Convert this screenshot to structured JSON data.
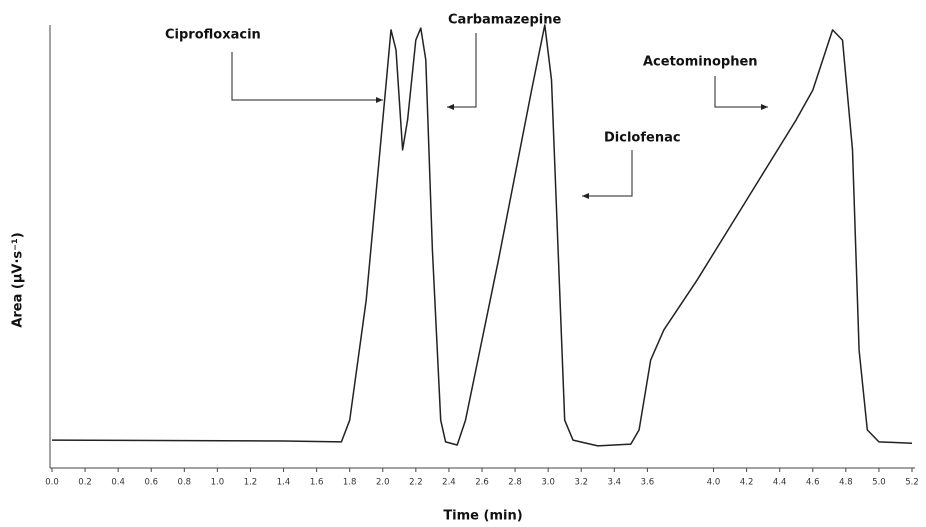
{
  "chart_data": {
    "type": "line",
    "xlabel": "Time (min)",
    "ylabel": "Area (μV·s⁻¹)",
    "annotations": [
      "Ciprofloxacin",
      "Carbamazepine",
      "Diclofenac",
      "Acetominophen"
    ],
    "xlim": [
      0,
      5.2
    ],
    "ylim": [
      0,
      100
    ],
    "xticks": [
      {
        "value": 0,
        "label": "0.0"
      },
      0.2,
      0.4,
      0.6,
      0.8,
      {
        "value": 1,
        "label": "1.0"
      },
      1.2,
      1.4,
      1.6,
      1.8,
      {
        "value": 2,
        "label": "2.0"
      },
      2.2,
      2.4,
      2.6,
      2.8,
      {
        "value": 3,
        "label": "3.0"
      },
      3.2,
      3.4,
      3.6,
      {
        "value": 4,
        "label": "4.0"
      },
      4.2,
      4.4,
      4.6,
      4.8,
      {
        "value": 5,
        "label": "5.0"
      },
      5.2
    ],
    "series": [
      {
        "color": "#222222",
        "x": [
          0,
          1.4,
          1.75,
          1.8,
          1.9,
          2.0,
          2.05,
          2.08,
          2.12,
          2.15,
          2.2,
          2.23,
          2.26,
          2.3,
          2.35,
          2.38,
          2.45,
          2.5,
          2.7,
          2.9,
          2.98,
          3.02,
          3.06,
          3.1,
          3.15,
          3.3,
          3.5,
          3.55,
          3.62,
          3.7,
          3.9,
          4.2,
          4.5,
          4.6,
          4.72,
          4.78,
          4.84,
          4.88,
          4.93,
          5.0,
          5.2
        ],
        "values": [
          6.3,
          6.1,
          5.9,
          10.8,
          37.9,
          78.6,
          98.9,
          94.4,
          71.8,
          78.6,
          96.6,
          99.3,
          92.1,
          49.2,
          10.8,
          5.9,
          5.2,
          10.8,
          47.0,
          85.3,
          100,
          87.6,
          49.2,
          10.8,
          6.3,
          5.0,
          5.4,
          8.6,
          24.4,
          31.2,
          42.4,
          60.5,
          78.6,
          85.3,
          98.9,
          96.6,
          71.8,
          26.6,
          8.6,
          5.9,
          5.6
        ]
      }
    ]
  }
}
